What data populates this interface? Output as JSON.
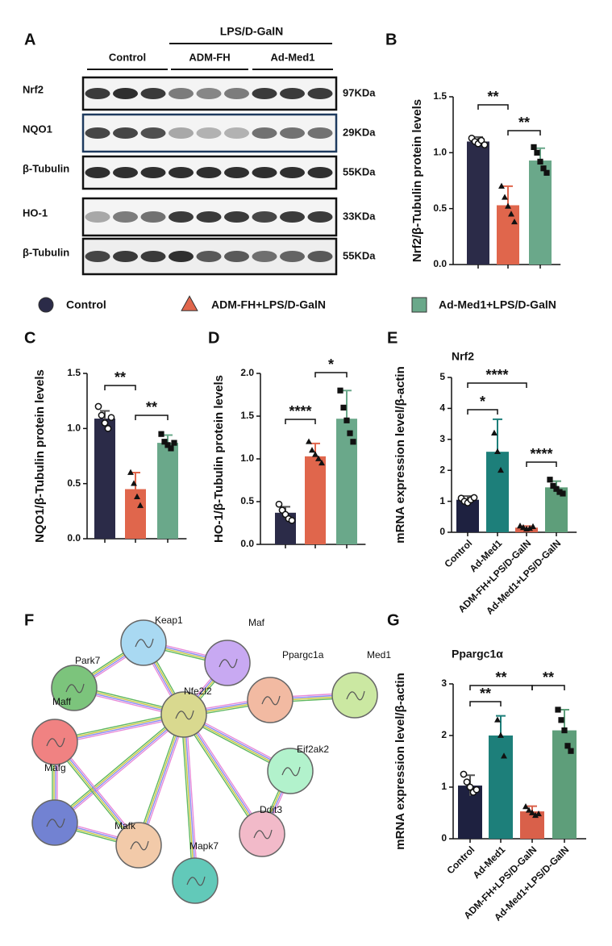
{
  "panels": [
    "A",
    "B",
    "C",
    "D",
    "E",
    "F",
    "G"
  ],
  "blot": {
    "header": "LPS/D-GalN",
    "groups": [
      "Control",
      "ADM-FH",
      "Ad-Med1"
    ],
    "rows": [
      {
        "label": "Nrf2",
        "size": "97KDa"
      },
      {
        "label": "NQO1",
        "size": "29KDa"
      },
      {
        "label": "β-Tubulin",
        "size": "55KDa"
      },
      {
        "label": "HO-1",
        "size": "33KDa"
      },
      {
        "label": "β-Tubulin",
        "size": "55KDa"
      }
    ]
  },
  "legend": [
    {
      "name": "Control",
      "color": "#2b2b48",
      "marker": "circle"
    },
    {
      "name": "ADM-FH+LPS/D-GalN",
      "color": "#e0664c",
      "marker": "triangle"
    },
    {
      "name": "Ad-Med1+LPS/D-GalN",
      "color": "#6aa88a",
      "marker": "square"
    }
  ],
  "network": {
    "nodes": [
      {
        "label": "Keap1",
        "color": "#a9d9f2"
      },
      {
        "label": "Maf",
        "color": "#c8a9f2"
      },
      {
        "label": "Park7",
        "color": "#7cc47c"
      },
      {
        "label": "Ppargc1a",
        "color": "#f2baa2"
      },
      {
        "label": "Med1",
        "color": "#cbe8a2"
      },
      {
        "label": "Nfe2l2",
        "color": "#d9d98f"
      },
      {
        "label": "Maff",
        "color": "#f08282"
      },
      {
        "label": "Eif2ak2",
        "color": "#b2f2cc"
      },
      {
        "label": "Mafg",
        "color": "#7282d2"
      },
      {
        "label": "Ddit3",
        "color": "#f2bac9"
      },
      {
        "label": "Mafk",
        "color": "#f2caa9"
      },
      {
        "label": "Mapk7",
        "color": "#62c9b9"
      }
    ]
  },
  "chart_data": [
    {
      "type": "bar",
      "ylabel": "Nrf2/β-Tubulin protein levels",
      "categories": [
        null,
        null,
        null
      ],
      "colors": [
        "#2b2b48",
        "#e0664c",
        "#6aa88a"
      ],
      "markers": [
        "circle",
        "triangle",
        "square"
      ],
      "values": [
        1.1,
        0.53,
        0.93
      ],
      "errors": [
        0.04,
        0.17,
        0.11
      ],
      "points": [
        [
          1.13,
          1.1,
          1.08,
          1.11,
          1.07
        ],
        [
          0.7,
          0.6,
          0.52,
          0.45,
          0.38
        ],
        [
          1.05,
          1.0,
          0.92,
          0.86,
          0.82
        ]
      ],
      "ylim": [
        0,
        1.5
      ],
      "yticks": [
        {
          "value": 0,
          "label": "0.0"
        },
        0.5,
        {
          "value": 1,
          "label": "1.0"
        },
        1.5
      ],
      "annotations": [
        "**",
        "**"
      ]
    },
    {
      "type": "bar",
      "ylabel": "NQO1/β-Tubulin protein levels",
      "categories": [
        null,
        null,
        null
      ],
      "colors": [
        "#2b2b48",
        "#e0664c",
        "#6aa88a"
      ],
      "markers": [
        "circle",
        "triangle",
        "square"
      ],
      "values": [
        1.09,
        0.45,
        0.87
      ],
      "errors": [
        0.07,
        0.15,
        0.07
      ],
      "points": [
        [
          1.2,
          1.12,
          1.05,
          1.0,
          1.1
        ],
        [
          0.6,
          0.5,
          0.38,
          0.3
        ],
        [
          0.95,
          0.88,
          0.85,
          0.82,
          0.87
        ]
      ],
      "ylim": [
        0,
        1.5
      ],
      "yticks": [
        {
          "value": 0,
          "label": "0.0"
        },
        0.5,
        {
          "value": 1,
          "label": "1.0"
        },
        1.5
      ],
      "annotations": [
        "**",
        "**"
      ]
    },
    {
      "type": "bar",
      "ylabel": "HO-1/β-Tubulin protein levels",
      "categories": [
        null,
        null,
        null
      ],
      "colors": [
        "#2b2b48",
        "#e0664c",
        "#6aa88a"
      ],
      "markers": [
        "circle",
        "triangle",
        "square"
      ],
      "values": [
        0.37,
        1.03,
        1.47
      ],
      "errors": [
        0.07,
        0.15,
        0.33
      ],
      "points": [
        [
          0.47,
          0.4,
          0.35,
          0.3,
          0.28
        ],
        [
          1.2,
          1.1,
          1.05,
          1.0,
          0.95
        ],
        [
          1.8,
          1.6,
          1.45,
          1.3,
          1.2
        ]
      ],
      "ylim": [
        0,
        2
      ],
      "yticks": [
        {
          "value": 0,
          "label": "0.0"
        },
        0.5,
        {
          "value": 1,
          "label": "1.0"
        },
        1.5,
        {
          "value": 2,
          "label": "2.0"
        }
      ],
      "annotations": [
        "****",
        "*"
      ]
    },
    {
      "type": "bar",
      "title": "Nrf2",
      "ylabel": "mRNA expression level/β-actin",
      "categories": [
        "Control",
        "Ad-Med1",
        "ADM-FH+LPS/D-GalN",
        "Ad-Med1+LPS/D-GalN"
      ],
      "colors": [
        "#1e2140",
        "#1d7f7a",
        "#d9604a",
        "#5e9e7a"
      ],
      "markers": [
        "circle",
        "triangle",
        "triangle",
        "square"
      ],
      "values": [
        1.05,
        2.6,
        0.15,
        1.45
      ],
      "errors": [
        0.12,
        1.05,
        0.05,
        0.2
      ],
      "points": [
        [
          1.1,
          1.0,
          0.95,
          1.05,
          1.12
        ],
        [
          3.2,
          2.6,
          2.0
        ],
        [
          0.2,
          0.15,
          0.1,
          0.12,
          0.18
        ],
        [
          1.7,
          1.5,
          1.4,
          1.3,
          1.25
        ]
      ],
      "ylim": [
        0,
        5
      ],
      "yticks": [
        0,
        1,
        2,
        3,
        4,
        5
      ],
      "annotations": [
        "*",
        "****",
        "****"
      ]
    },
    {
      "type": "bar",
      "title": "Ppargc1α",
      "ylabel": "mRNA expression level/β-actin",
      "categories": [
        "Control",
        "Ad-Med1",
        "ADM-FH+LPS/D-GalN",
        "Ad-Med1+LPS/D-GalN"
      ],
      "colors": [
        "#1e2140",
        "#1d7f7a",
        "#d9604a",
        "#5e9e7a"
      ],
      "markers": [
        "circle",
        "triangle",
        "triangle",
        "square"
      ],
      "values": [
        1.03,
        2.0,
        0.53,
        2.1
      ],
      "errors": [
        0.2,
        0.38,
        0.1,
        0.4
      ],
      "points": [
        [
          1.25,
          1.1,
          1.0,
          0.9,
          0.95
        ],
        [
          2.3,
          2.0,
          1.6
        ],
        [
          0.62,
          0.55,
          0.5,
          0.45,
          0.48
        ],
        [
          2.5,
          2.3,
          2.1,
          1.8,
          1.7
        ]
      ],
      "ylim": [
        0,
        3
      ],
      "yticks": [
        0,
        1,
        2,
        3
      ],
      "annotations": [
        "**",
        "**",
        "**"
      ]
    }
  ]
}
